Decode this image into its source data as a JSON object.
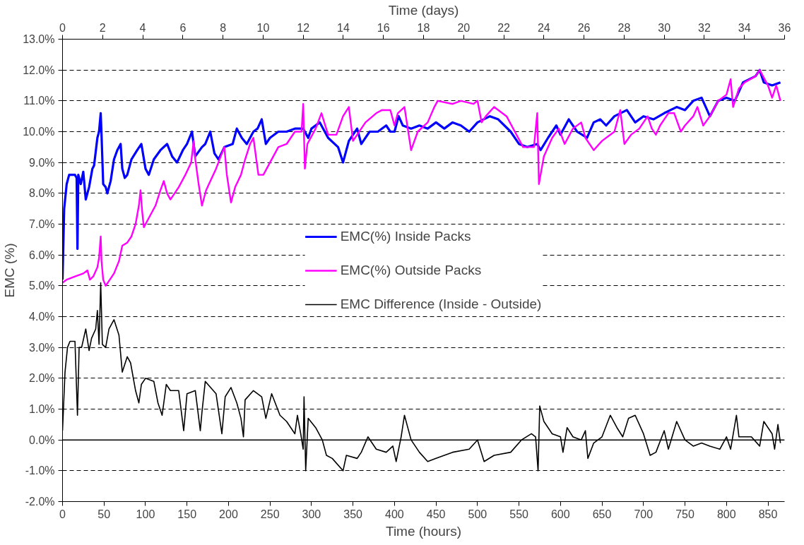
{
  "chart_data": {
    "type": "line",
    "xlabel": "Time (hours)",
    "x2label": "Time (days)",
    "ylabel": "EMC (%)",
    "xlim": [
      0,
      870
    ],
    "xticks": [
      0,
      50,
      100,
      150,
      200,
      250,
      300,
      350,
      400,
      450,
      500,
      550,
      600,
      650,
      700,
      750,
      800,
      850
    ],
    "x2lim": [
      0,
      36
    ],
    "x2ticks": [
      0,
      2,
      4,
      6,
      8,
      10,
      12,
      14,
      16,
      18,
      20,
      22,
      24,
      26,
      28,
      30,
      32,
      34,
      36
    ],
    "ylim": [
      -2,
      13
    ],
    "yticks": [
      {
        "value": -2,
        "label": "-2.0%"
      },
      {
        "value": -1,
        "label": "-1.0%"
      },
      {
        "value": 0,
        "label": "0.0%"
      },
      {
        "value": 1,
        "label": "1.0%"
      },
      {
        "value": 2,
        "label": "2.0%"
      },
      {
        "value": 3,
        "label": "3.0%"
      },
      {
        "value": 4,
        "label": "4.0%"
      },
      {
        "value": 5,
        "label": "5.0%"
      },
      {
        "value": 6,
        "label": "6.0%"
      },
      {
        "value": 7,
        "label": "7.0%"
      },
      {
        "value": 8,
        "label": "8.0%"
      },
      {
        "value": 9,
        "label": "9.0%"
      },
      {
        "value": 10,
        "label": "10.0%"
      },
      {
        "value": 11,
        "label": "11.0%"
      },
      {
        "value": 12,
        "label": "12.0%"
      },
      {
        "value": 13,
        "label": "13.0%"
      }
    ],
    "grid": "y",
    "legend": "center",
    "marker": "none",
    "line_style": "solid",
    "ref_lines": [
      {
        "axis": "y",
        "value": 0,
        "label": null,
        "color": "#000000"
      }
    ],
    "series": [
      {
        "name": "EMC(%) Inside Packs",
        "color": "#0000ff",
        "x": [
          0,
          2,
          5,
          8,
          15,
          17,
          18,
          19,
          22,
          25,
          28,
          32,
          36,
          38,
          42,
          44,
          46,
          47,
          49,
          52,
          54,
          58,
          62,
          66,
          70,
          72,
          75,
          78,
          83,
          90,
          95,
          100,
          104,
          110,
          118,
          126,
          132,
          138,
          145,
          150,
          156,
          160,
          168,
          172,
          178,
          183,
          188,
          195,
          205,
          210,
          216,
          222,
          230,
          235,
          240,
          245,
          250,
          260,
          270,
          280,
          290,
          296,
          300,
          310,
          320,
          332,
          338,
          345,
          355,
          360,
          370,
          380,
          390,
          395,
          400,
          405,
          410,
          420,
          430,
          440,
          450,
          460,
          470,
          480,
          490,
          500,
          515,
          525,
          540,
          550,
          560,
          572,
          576,
          585,
          595,
          600,
          610,
          620,
          632,
          640,
          648,
          655,
          665,
          680,
          690,
          700,
          712,
          725,
          740,
          750,
          760,
          770,
          780,
          790,
          800,
          810,
          820,
          835,
          840,
          845,
          855,
          865
        ],
        "values": [
          5.2,
          7.5,
          8.3,
          8.6,
          8.6,
          8.5,
          6.2,
          8.6,
          8.3,
          8.7,
          7.8,
          8.2,
          8.8,
          8.9,
          9.8,
          10.0,
          10.6,
          9.9,
          8.3,
          8.2,
          8.0,
          8.4,
          9.1,
          9.4,
          9.6,
          8.8,
          8.5,
          8.6,
          9.1,
          9.4,
          9.6,
          8.8,
          8.6,
          9.1,
          9.4,
          9.6,
          9.2,
          9.0,
          9.4,
          9.6,
          10.0,
          9.2,
          9.5,
          9.6,
          10.0,
          9.3,
          9.1,
          9.5,
          9.6,
          10.1,
          9.8,
          9.6,
          10.0,
          10.1,
          10.4,
          9.6,
          9.8,
          10.0,
          10.0,
          10.1,
          10.1,
          9.8,
          10.1,
          10.3,
          9.8,
          9.5,
          9.0,
          9.7,
          10.1,
          9.6,
          10.0,
          10.0,
          10.2,
          10.0,
          10.0,
          10.5,
          10.2,
          10.1,
          10.2,
          10.1,
          10.3,
          10.1,
          10.3,
          10.2,
          10.0,
          10.3,
          10.5,
          10.4,
          10.0,
          9.6,
          9.5,
          9.6,
          9.4,
          9.8,
          10.2,
          9.9,
          10.4,
          10.0,
          9.8,
          10.3,
          10.4,
          10.2,
          10.5,
          10.7,
          10.3,
          10.5,
          10.4,
          10.6,
          10.8,
          10.7,
          11.0,
          11.1,
          10.5,
          11.0,
          11.1,
          11.0,
          11.6,
          11.8,
          12.0,
          11.6,
          11.5,
          11.6
        ]
      },
      {
        "name": "EMC(%) Outside Packs",
        "color": "#ff00ff",
        "x": [
          0,
          5,
          15,
          25,
          30,
          33,
          37,
          42,
          44,
          46,
          47,
          49,
          52,
          57,
          62,
          68,
          72,
          78,
          83,
          88,
          92,
          94,
          96,
          98,
          104,
          112,
          118,
          122,
          126,
          130,
          140,
          148,
          155,
          158,
          160,
          164,
          168,
          173,
          185,
          192,
          195,
          198,
          203,
          208,
          215,
          220,
          226,
          230,
          236,
          242,
          250,
          260,
          270,
          280,
          288,
          290,
          292,
          295,
          305,
          312,
          320,
          330,
          338,
          345,
          350,
          355,
          365,
          378,
          385,
          395,
          400,
          404,
          412,
          420,
          428,
          440,
          448,
          452,
          470,
          480,
          495,
          500,
          505,
          510,
          520,
          535,
          545,
          555,
          568,
          572,
          574,
          580,
          590,
          598,
          605,
          615,
          625,
          630,
          640,
          650,
          665,
          672,
          677,
          685,
          695,
          705,
          710,
          715,
          720,
          730,
          737,
          745,
          750,
          760,
          765,
          772,
          780,
          790,
          800,
          805,
          808,
          815,
          822,
          835,
          840,
          850,
          855,
          860,
          865
        ],
        "values": [
          5.1,
          5.2,
          5.3,
          5.4,
          5.5,
          5.2,
          5.3,
          5.6,
          5.9,
          6.6,
          5.8,
          5.2,
          5.0,
          5.2,
          5.4,
          5.8,
          6.3,
          6.4,
          6.6,
          7.0,
          7.6,
          8.1,
          7.4,
          6.9,
          7.2,
          7.6,
          8.1,
          8.4,
          8.0,
          7.8,
          8.2,
          8.6,
          9.0,
          9.7,
          9.1,
          8.3,
          7.6,
          8.1,
          8.8,
          9.3,
          9.5,
          8.6,
          7.7,
          8.2,
          8.6,
          9.1,
          9.6,
          9.8,
          8.6,
          8.6,
          9.0,
          9.5,
          9.6,
          10.0,
          10.0,
          10.9,
          8.8,
          9.6,
          10.1,
          10.6,
          9.9,
          9.9,
          10.5,
          10.8,
          9.7,
          9.9,
          10.3,
          10.6,
          10.7,
          10.7,
          10.2,
          10.6,
          10.8,
          9.4,
          10.0,
          10.3,
          10.8,
          11.0,
          10.9,
          11.0,
          10.9,
          11.0,
          10.3,
          10.5,
          10.8,
          10.5,
          10.0,
          9.5,
          9.5,
          10.6,
          8.3,
          9.2,
          9.8,
          10.1,
          9.6,
          10.1,
          10.3,
          9.8,
          9.4,
          9.7,
          10.0,
          10.7,
          9.6,
          9.9,
          10.1,
          10.5,
          10.1,
          9.9,
          10.2,
          10.6,
          10.6,
          10.0,
          10.2,
          10.5,
          10.8,
          10.2,
          10.5,
          11.0,
          11.2,
          11.7,
          10.8,
          11.4,
          11.6,
          11.8,
          12.0,
          11.5,
          11.1,
          11.5,
          11.0
        ]
      },
      {
        "name": "EMC Difference (Inside - Outside)",
        "color": "#000000",
        "x": [
          0,
          3,
          6,
          9,
          15,
          18,
          20,
          23,
          28,
          32,
          35,
          40,
          42,
          44,
          46,
          48,
          52,
          56,
          62,
          68,
          72,
          78,
          82,
          88,
          92,
          95,
          100,
          110,
          115,
          120,
          125,
          130,
          140,
          146,
          150,
          160,
          166,
          168,
          172,
          185,
          192,
          196,
          203,
          210,
          215,
          218,
          220,
          230,
          240,
          245,
          252,
          262,
          270,
          280,
          283,
          287,
          290,
          291,
          293,
          296,
          305,
          313,
          318,
          325,
          338,
          342,
          355,
          360,
          368,
          378,
          390,
          398,
          402,
          408,
          412,
          420,
          430,
          440,
          450,
          470,
          490,
          500,
          508,
          520,
          540,
          553,
          565,
          570,
          573,
          575,
          580,
          590,
          600,
          603,
          608,
          615,
          625,
          630,
          633,
          640,
          650,
          660,
          668,
          675,
          682,
          690,
          700,
          708,
          715,
          725,
          730,
          740,
          750,
          760,
          770,
          780,
          792,
          800,
          805,
          812,
          815,
          830,
          840,
          845,
          855,
          858,
          862,
          865
        ],
        "values": [
          0.3,
          2.2,
          3.0,
          3.2,
          3.2,
          0.8,
          3.0,
          3.0,
          3.6,
          2.9,
          3.3,
          3.6,
          4.2,
          3.1,
          5.1,
          3.1,
          3.0,
          3.6,
          3.9,
          3.4,
          2.2,
          2.7,
          2.5,
          1.6,
          1.2,
          1.8,
          2.0,
          1.9,
          1.2,
          0.8,
          1.8,
          1.6,
          1.6,
          0.3,
          1.5,
          1.6,
          0.3,
          0.9,
          1.9,
          1.5,
          0.2,
          1.4,
          1.7,
          1.2,
          0.7,
          0.1,
          1.3,
          1.6,
          1.4,
          0.7,
          1.5,
          0.8,
          0.6,
          0.2,
          0.8,
          0.2,
          -0.3,
          1.4,
          -1.0,
          0.7,
          0.4,
          0.0,
          -0.5,
          -0.6,
          -1.0,
          -0.5,
          -0.6,
          -0.4,
          0.1,
          -0.3,
          -0.4,
          -0.2,
          -0.7,
          0.1,
          0.8,
          0.0,
          -0.4,
          -0.7,
          -0.6,
          -0.4,
          -0.3,
          0.0,
          -0.7,
          -0.5,
          -0.4,
          0.0,
          0.2,
          0.1,
          -1.0,
          1.1,
          0.6,
          0.2,
          0.1,
          -0.4,
          0.4,
          0.1,
          0.0,
          0.3,
          -0.6,
          -0.1,
          0.1,
          0.8,
          0.4,
          0.1,
          0.7,
          0.8,
          0.2,
          -0.5,
          -0.4,
          0.3,
          -0.3,
          0.6,
          0.0,
          -0.2,
          -0.1,
          -0.2,
          -0.3,
          0.1,
          -0.3,
          0.8,
          0.1,
          0.1,
          -0.2,
          0.6,
          0.2,
          -0.3,
          0.5,
          -0.1
        ]
      }
    ]
  }
}
